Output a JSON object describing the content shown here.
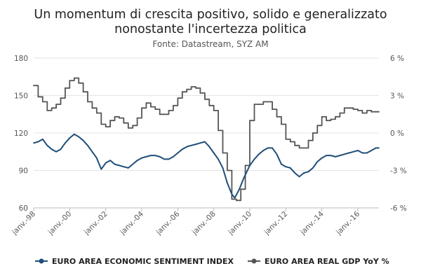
{
  "chart_data": {
    "type": "line",
    "title": "Un momentum di crescita positivo, solido e generalizzato nonostante l'incertezza politica",
    "title_lines": [
      "Un momentum di crescita positivo, solido e generalizzato",
      "nonostante l'incertezza politica"
    ],
    "subtitle": "Fonte: Datastream, SYZ AM",
    "x_range": [
      "1998-01",
      "2017-03"
    ],
    "x_ticks": [
      "janv.-98",
      "janv.-00",
      "janv.-02",
      "janv.-04",
      "janv.-06",
      "janv.-08",
      "janv.-10",
      "janv.-12",
      "janv.-14",
      "janv.-16"
    ],
    "y_left": {
      "ticks": [
        "180",
        "150",
        "120",
        "90",
        "60"
      ],
      "range": [
        60,
        180
      ]
    },
    "y_right": {
      "ticks": [
        "6 %",
        "3 %",
        "0 %",
        "-3 %",
        "-6 %"
      ],
      "range": [
        -6,
        6
      ]
    },
    "grid": "horizontal",
    "legend_position": "bottom",
    "series": [
      {
        "name": "EURO AREA ECONOMIC SENTIMENT INDEX",
        "axis": "left",
        "color": "#1f4e79",
        "points": [
          [
            "1998-01",
            112
          ],
          [
            "1998-04",
            113
          ],
          [
            "1998-07",
            115
          ],
          [
            "1998-10",
            110
          ],
          [
            "1999-01",
            107
          ],
          [
            "1999-04",
            105
          ],
          [
            "1999-07",
            107
          ],
          [
            "1999-10",
            112
          ],
          [
            "2000-01",
            116
          ],
          [
            "2000-04",
            119
          ],
          [
            "2000-07",
            117
          ],
          [
            "2000-10",
            114
          ],
          [
            "2001-01",
            110
          ],
          [
            "2001-04",
            105
          ],
          [
            "2001-07",
            100
          ],
          [
            "2001-10",
            91
          ],
          [
            "2002-01",
            96
          ],
          [
            "2002-04",
            98
          ],
          [
            "2002-07",
            95
          ],
          [
            "2002-10",
            94
          ],
          [
            "2003-01",
            93
          ],
          [
            "2003-04",
            92
          ],
          [
            "2003-07",
            95
          ],
          [
            "2003-10",
            98
          ],
          [
            "2004-01",
            100
          ],
          [
            "2004-04",
            101
          ],
          [
            "2004-07",
            102
          ],
          [
            "2004-10",
            102
          ],
          [
            "2005-01",
            101
          ],
          [
            "2005-04",
            99
          ],
          [
            "2005-07",
            99
          ],
          [
            "2005-10",
            101
          ],
          [
            "2006-01",
            104
          ],
          [
            "2006-04",
            107
          ],
          [
            "2006-07",
            109
          ],
          [
            "2006-10",
            110
          ],
          [
            "2007-01",
            111
          ],
          [
            "2007-04",
            112
          ],
          [
            "2007-07",
            113
          ],
          [
            "2007-10",
            109
          ],
          [
            "2008-01",
            104
          ],
          [
            "2008-04",
            99
          ],
          [
            "2008-07",
            92
          ],
          [
            "2008-10",
            80
          ],
          [
            "2009-01",
            71
          ],
          [
            "2009-03",
            68
          ],
          [
            "2009-06",
            75
          ],
          [
            "2009-09",
            84
          ],
          [
            "2010-01",
            94
          ],
          [
            "2010-04",
            99
          ],
          [
            "2010-07",
            103
          ],
          [
            "2010-10",
            106
          ],
          [
            "2011-01",
            108
          ],
          [
            "2011-04",
            108
          ],
          [
            "2011-07",
            103
          ],
          [
            "2011-10",
            95
          ],
          [
            "2012-01",
            93
          ],
          [
            "2012-04",
            92
          ],
          [
            "2012-07",
            88
          ],
          [
            "2012-10",
            85
          ],
          [
            "2013-01",
            88
          ],
          [
            "2013-04",
            89
          ],
          [
            "2013-07",
            92
          ],
          [
            "2013-10",
            97
          ],
          [
            "2014-01",
            100
          ],
          [
            "2014-04",
            102
          ],
          [
            "2014-07",
            102
          ],
          [
            "2014-10",
            101
          ],
          [
            "2015-01",
            102
          ],
          [
            "2015-04",
            103
          ],
          [
            "2015-07",
            104
          ],
          [
            "2015-10",
            105
          ],
          [
            "2016-01",
            106
          ],
          [
            "2016-04",
            104
          ],
          [
            "2016-07",
            104
          ],
          [
            "2016-10",
            106
          ],
          [
            "2017-01",
            108
          ],
          [
            "2017-03",
            108
          ]
        ]
      },
      {
        "name": "EURO AREA REAL GDP YoY %",
        "axis": "right",
        "color": "#555555",
        "step": true,
        "points": [
          [
            "1998-01",
            3.8
          ],
          [
            "1998-04",
            2.9
          ],
          [
            "1998-07",
            2.5
          ],
          [
            "1998-10",
            1.8
          ],
          [
            "1999-01",
            2.0
          ],
          [
            "1999-04",
            2.3
          ],
          [
            "1999-07",
            2.8
          ],
          [
            "1999-10",
            3.6
          ],
          [
            "2000-01",
            4.2
          ],
          [
            "2000-04",
            4.4
          ],
          [
            "2000-07",
            4.0
          ],
          [
            "2000-10",
            3.3
          ],
          [
            "2001-01",
            2.5
          ],
          [
            "2001-04",
            2.0
          ],
          [
            "2001-07",
            1.6
          ],
          [
            "2001-10",
            0.7
          ],
          [
            "2002-01",
            0.5
          ],
          [
            "2002-04",
            1.0
          ],
          [
            "2002-07",
            1.3
          ],
          [
            "2002-10",
            1.2
          ],
          [
            "2003-01",
            0.8
          ],
          [
            "2003-04",
            0.4
          ],
          [
            "2003-07",
            0.6
          ],
          [
            "2003-10",
            1.2
          ],
          [
            "2004-01",
            2.0
          ],
          [
            "2004-04",
            2.4
          ],
          [
            "2004-07",
            2.1
          ],
          [
            "2004-10",
            1.9
          ],
          [
            "2005-01",
            1.5
          ],
          [
            "2005-04",
            1.5
          ],
          [
            "2005-07",
            1.8
          ],
          [
            "2005-10",
            2.2
          ],
          [
            "2006-01",
            2.8
          ],
          [
            "2006-04",
            3.3
          ],
          [
            "2006-07",
            3.5
          ],
          [
            "2006-10",
            3.7
          ],
          [
            "2007-01",
            3.6
          ],
          [
            "2007-04",
            3.2
          ],
          [
            "2007-07",
            2.7
          ],
          [
            "2007-10",
            2.2
          ],
          [
            "2008-01",
            1.8
          ],
          [
            "2008-04",
            0.2
          ],
          [
            "2008-07",
            -1.6
          ],
          [
            "2008-10",
            -3.0
          ],
          [
            "2009-01",
            -5.3
          ],
          [
            "2009-04",
            -5.4
          ],
          [
            "2009-07",
            -4.5
          ],
          [
            "2009-10",
            -2.6
          ],
          [
            "2010-01",
            1.0
          ],
          [
            "2010-04",
            2.3
          ],
          [
            "2010-07",
            2.3
          ],
          [
            "2010-10",
            2.5
          ],
          [
            "2011-01",
            2.5
          ],
          [
            "2011-04",
            1.9
          ],
          [
            "2011-07",
            1.3
          ],
          [
            "2011-10",
            0.7
          ],
          [
            "2012-01",
            -0.5
          ],
          [
            "2012-04",
            -0.7
          ],
          [
            "2012-07",
            -1.0
          ],
          [
            "2012-10",
            -1.2
          ],
          [
            "2013-01",
            -1.2
          ],
          [
            "2013-04",
            -0.6
          ],
          [
            "2013-07",
            0.0
          ],
          [
            "2013-10",
            0.6
          ],
          [
            "2014-01",
            1.3
          ],
          [
            "2014-04",
            1.0
          ],
          [
            "2014-07",
            1.1
          ],
          [
            "2014-10",
            1.3
          ],
          [
            "2015-01",
            1.6
          ],
          [
            "2015-04",
            2.0
          ],
          [
            "2015-07",
            2.0
          ],
          [
            "2015-10",
            1.9
          ],
          [
            "2016-01",
            1.8
          ],
          [
            "2016-04",
            1.6
          ],
          [
            "2016-07",
            1.8
          ],
          [
            "2016-10",
            1.7
          ],
          [
            "2017-01",
            1.7
          ],
          [
            "2017-03",
            1.7
          ]
        ]
      }
    ]
  }
}
